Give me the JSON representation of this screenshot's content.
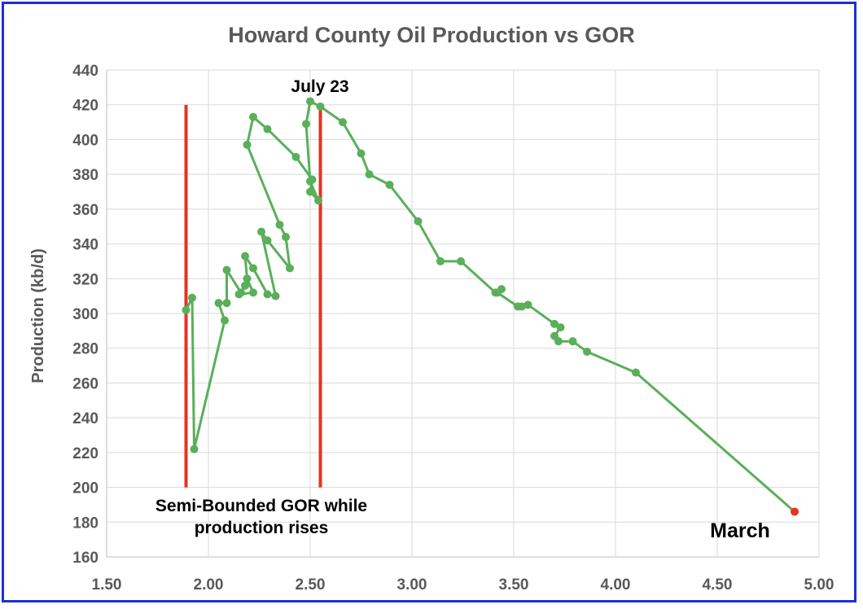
{
  "chart_data": {
    "type": "line",
    "title": "Howard County Oil Production vs GOR",
    "xlabel": "",
    "ylabel": "Production (kb/d)",
    "xlim": [
      1.5,
      5.0
    ],
    "ylim": [
      160,
      440
    ],
    "xticks": [
      "1.50",
      "2.00",
      "2.50",
      "3.00",
      "3.50",
      "4.00",
      "4.50",
      "5.00"
    ],
    "yticks": [
      "160",
      "180",
      "200",
      "220",
      "240",
      "260",
      "280",
      "300",
      "320",
      "340",
      "360",
      "380",
      "400",
      "420",
      "440"
    ],
    "grid": true,
    "series": [
      {
        "color": "#5aaf5a",
        "points": [
          [
            1.89,
            302
          ],
          [
            1.92,
            309
          ],
          [
            1.93,
            222
          ],
          [
            2.08,
            296
          ],
          [
            2.05,
            306
          ],
          [
            2.09,
            306
          ],
          [
            2.09,
            325
          ],
          [
            2.16,
            312
          ],
          [
            2.18,
            316
          ],
          [
            2.15,
            311
          ],
          [
            2.22,
            312
          ],
          [
            2.19,
            320
          ],
          [
            2.18,
            333
          ],
          [
            2.22,
            326
          ],
          [
            2.29,
            311
          ],
          [
            2.33,
            310
          ],
          [
            2.26,
            347
          ],
          [
            2.29,
            342
          ],
          [
            2.4,
            326
          ],
          [
            2.38,
            344
          ],
          [
            2.35,
            351
          ],
          [
            2.19,
            397
          ],
          [
            2.22,
            413
          ],
          [
            2.29,
            406
          ],
          [
            2.43,
            390
          ],
          [
            2.51,
            377
          ],
          [
            2.5,
            370
          ],
          [
            2.54,
            365
          ],
          [
            2.5,
            376
          ],
          [
            2.48,
            409
          ],
          [
            2.5,
            422
          ],
          [
            2.55,
            419
          ],
          [
            2.66,
            410
          ],
          [
            2.75,
            392
          ],
          [
            2.79,
            380
          ],
          [
            2.89,
            374
          ],
          [
            3.03,
            353
          ],
          [
            3.14,
            330
          ],
          [
            3.24,
            330
          ],
          [
            3.41,
            312
          ],
          [
            3.44,
            314
          ],
          [
            3.42,
            312
          ],
          [
            3.52,
            304
          ],
          [
            3.54,
            304
          ],
          [
            3.57,
            305
          ],
          [
            3.7,
            294
          ],
          [
            3.73,
            292
          ],
          [
            3.7,
            287
          ],
          [
            3.72,
            284
          ],
          [
            3.79,
            284
          ],
          [
            3.86,
            278
          ],
          [
            4.1,
            266
          ],
          [
            4.88,
            186
          ]
        ],
        "last_point_color": "#e8321e"
      }
    ],
    "vertical_lines": [
      {
        "x": 1.89,
        "y_from": 200,
        "y_to": 420,
        "color": "#e8321e"
      },
      {
        "x": 2.55,
        "y_from": 200,
        "y_to": 420,
        "color": "#e8321e"
      }
    ],
    "annotations": [
      {
        "text": "July 23",
        "size": 21
      },
      {
        "text": "Semi-Bounded GOR while",
        "size": 21
      },
      {
        "text": "production rises",
        "size": 21
      },
      {
        "text": "March",
        "size": 25
      }
    ]
  }
}
